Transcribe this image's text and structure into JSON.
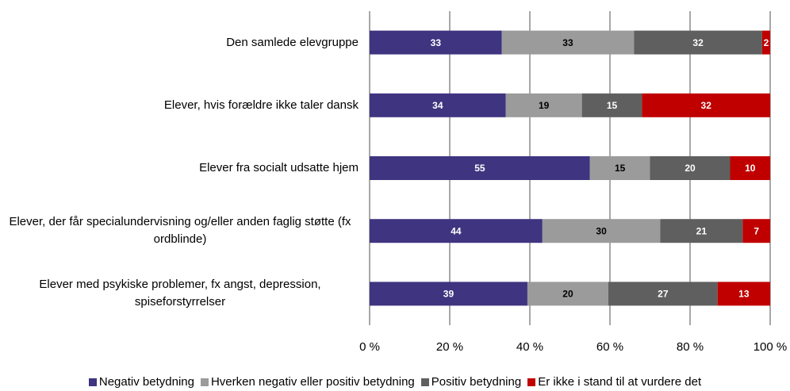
{
  "chart_data": {
    "type": "bar",
    "orientation": "horizontal",
    "stacking": "percent",
    "categories": [
      "Den samlede elevgruppe",
      "Elever, hvis forældre ikke taler dansk",
      "Elever fra socialt udsatte hjem",
      "Elever, der får specialundervisning og/eller anden faglig støtte (fx ordblinde)",
      "Elever med psykiske problemer, fx angst, depression, spiseforstyrrelser"
    ],
    "series": [
      {
        "name": "Negativ betydning",
        "color": "#3f3480",
        "label_color": "#ffffff",
        "values": [
          33,
          34,
          55,
          44,
          39
        ]
      },
      {
        "name": "Hverken negativ eller positiv betydning",
        "color": "#9b9b9b",
        "label_color": "#000000",
        "values": [
          33,
          19,
          15,
          30,
          20
        ]
      },
      {
        "name": "Positiv betydning",
        "color": "#5f5f5f",
        "label_color": "#ffffff",
        "values": [
          32,
          15,
          20,
          21,
          27
        ]
      },
      {
        "name": "Er ikke i stand til at vurdere det",
        "color": "#c00000",
        "label_color": "#ffffff",
        "values": [
          2,
          32,
          10,
          7,
          13
        ]
      }
    ],
    "xlim": [
      0,
      100
    ],
    "xticks": [
      {
        "value": 0,
        "label": "0 %"
      },
      {
        "value": 20,
        "label": "20 %"
      },
      {
        "value": 40,
        "label": "40 %"
      },
      {
        "value": 60,
        "label": "60 %"
      },
      {
        "value": 80,
        "label": "80 %"
      },
      {
        "value": 100,
        "label": "100 %"
      }
    ],
    "grid": true,
    "legend": "bottom"
  }
}
